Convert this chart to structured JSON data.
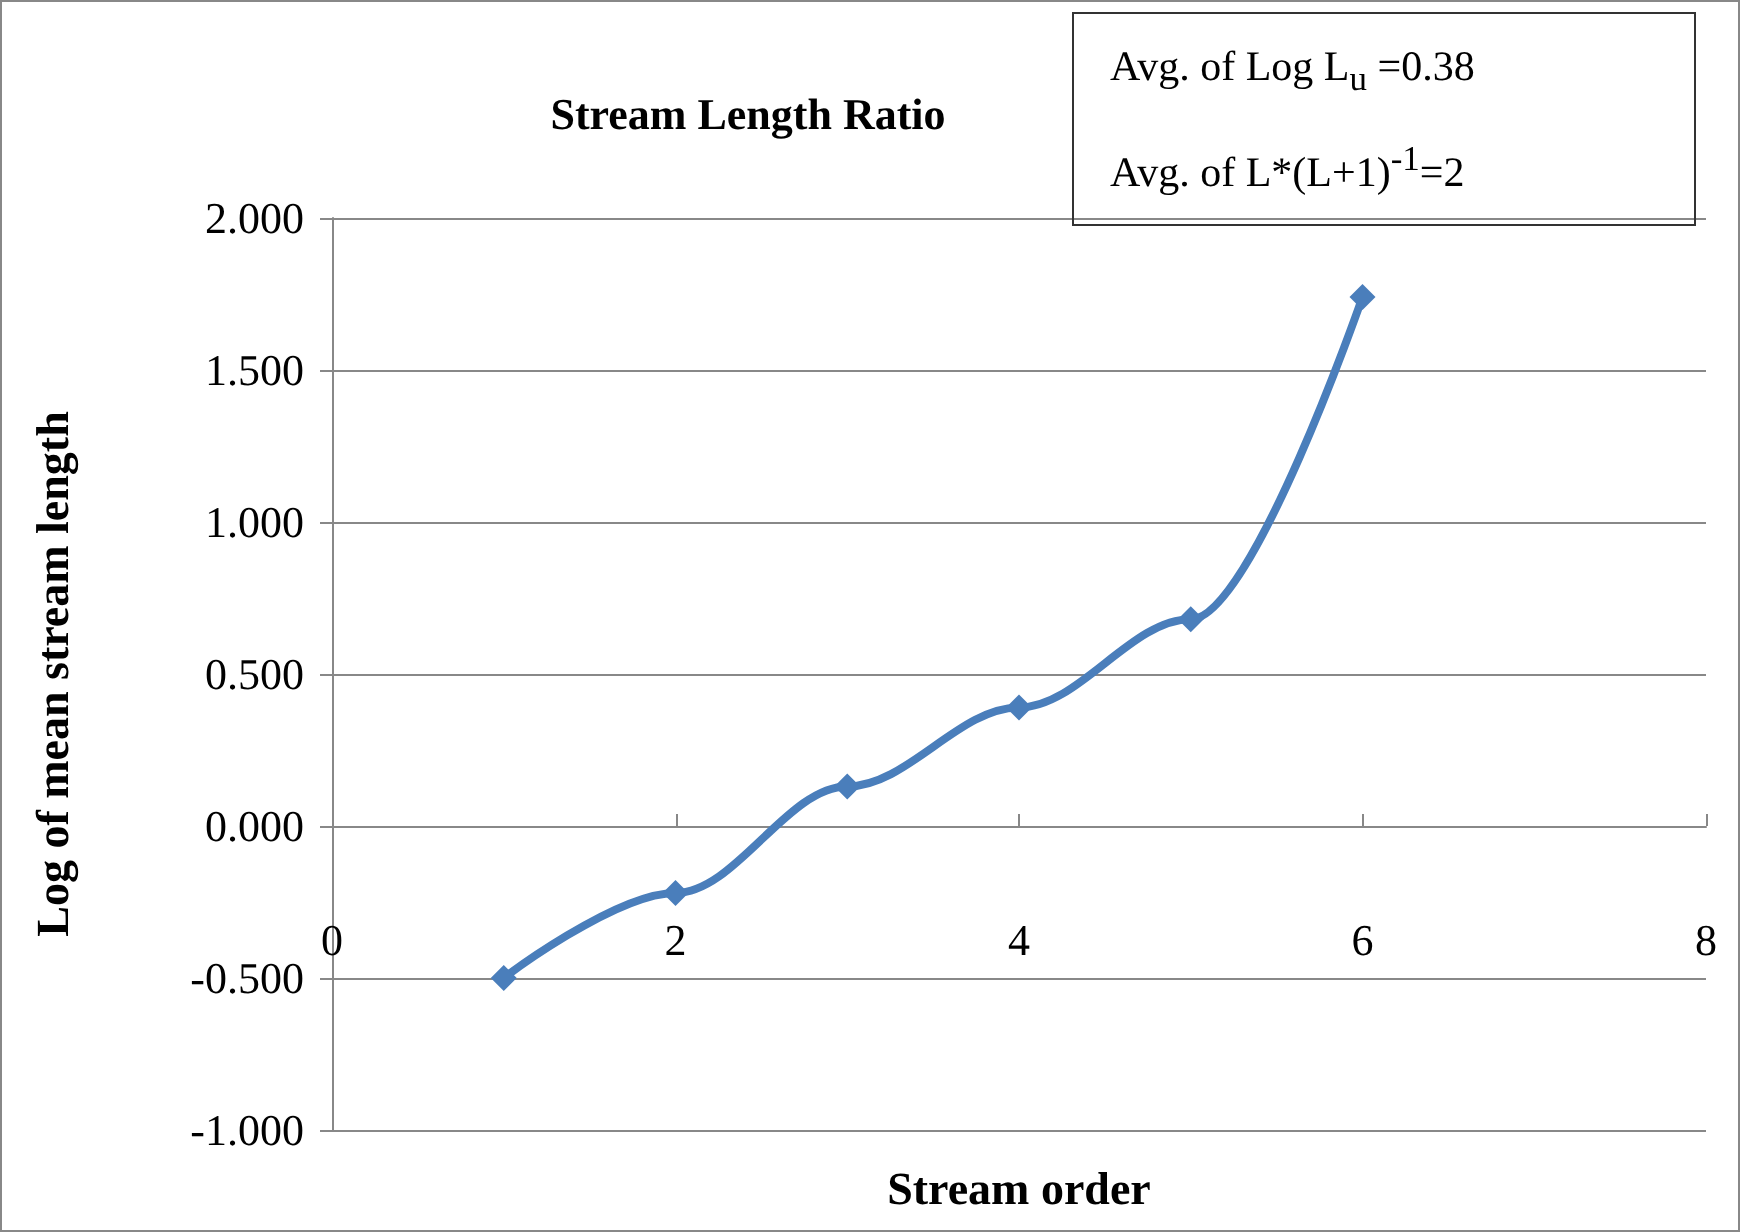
{
  "chart_data": {
    "type": "line",
    "title": "Stream Length Ratio",
    "xlabel": "Stream order",
    "ylabel": "Log of mean stream length",
    "annotations": [
      "Avg. of Log L$_{u}$ =0.38",
      "Avg. of L*(L+1)$^{-1}$=2"
    ],
    "x": [
      1,
      2,
      3,
      4,
      5,
      6
    ],
    "series": [
      {
        "color": "#4a7ebb",
        "values": [
          -0.5,
          -0.22,
          0.13,
          0.39,
          0.68,
          1.74
        ]
      }
    ],
    "xlim": [
      0,
      8
    ],
    "xticks": [
      0,
      2,
      4,
      6,
      8
    ],
    "ylim": [
      -1,
      2
    ],
    "yticks": [
      {
        "value": -1,
        "label": "-1.000"
      },
      {
        "value": -0.5,
        "label": "-0.500"
      },
      {
        "value": 0,
        "label": "0.000"
      },
      {
        "value": 0.5,
        "label": "0.500"
      },
      {
        "value": 1,
        "label": "1.000"
      },
      {
        "value": 1.5,
        "label": "1.500"
      },
      {
        "value": 2,
        "label": "2.000"
      }
    ],
    "grid": "y",
    "marker": "diamond",
    "line_style": "solid"
  }
}
